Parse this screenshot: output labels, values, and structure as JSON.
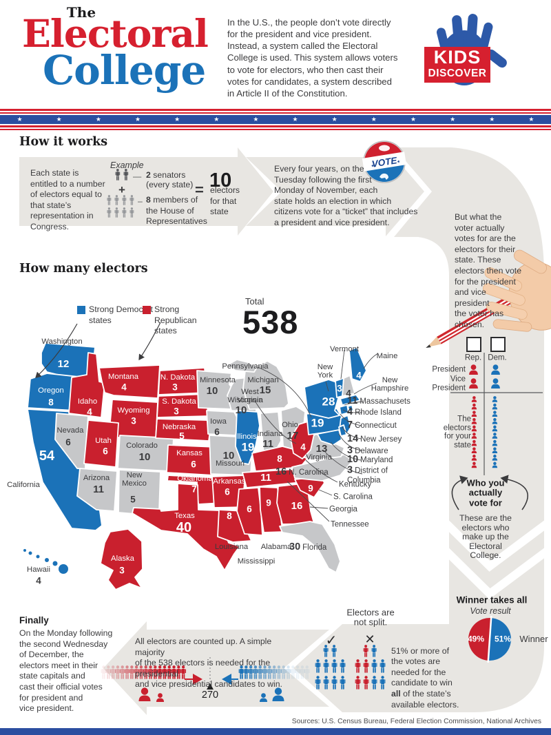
{
  "header": {
    "pretitle": "The",
    "title_word1": "Electoral",
    "title_word2": "College",
    "intro": "In the U.S., the people don’t vote directly\nfor the president and vice president.\nInstead, a system called the Electoral\nCollege is used. This system allows voters\nto vote for electors, who then cast their\nvotes for candidates, a system described\nin Article II of the Constitution.",
    "logo_line1": "KIDS",
    "logo_line2": "DISCOVER"
  },
  "divider": {
    "star": "★"
  },
  "how_it_works": {
    "heading": "How it works",
    "intro": "Each state is\nentitled to a number\nof electors equal to\nthat state’s\nrepresentation in\nCongress.",
    "example_label": "Example",
    "dash_senate": "—",
    "senators_count": "2",
    "senators_label": "senators",
    "senators_note": "(every state)",
    "plus": "+",
    "dash_house": "–",
    "house_count": "8",
    "house_label": "members of\nthe House of\nRepresentatives",
    "equals": "=",
    "result_value": "10",
    "result_label": "electors\nfor that\nstate",
    "election_note": "Every four years, on the\nTuesday following the first\nMonday of November, each\nstate holds an election in which\ncitizens vote for a “ticket” that includes\na president and vice president.",
    "vote_button": "VOTE",
    "voter_note": "But what the\nvoter actually\nvotes for are the\nelectors for their\nstate. These\nelectors then vote\nfor the president\nand vice\npresident\nthe voter has\nchosen."
  },
  "how_many": {
    "heading": "How many electors",
    "legend": [
      {
        "label": "Strong Democrat\nstates",
        "color": "#1b72b8"
      },
      {
        "label": "Strong\nRepublican\nstates",
        "color": "#c9202e"
      }
    ],
    "total_label": "Total",
    "total_value": "538"
  },
  "map": {
    "states": [
      {
        "id": "washington",
        "name": "Washington",
        "votes": 12,
        "party": "dem"
      },
      {
        "id": "oregon",
        "name": "Oregon",
        "votes": 8,
        "party": "dem"
      },
      {
        "id": "california",
        "name": "California",
        "votes": 54,
        "party": "dem"
      },
      {
        "id": "nevada",
        "name": "Nevada",
        "votes": 6,
        "party": "swing"
      },
      {
        "id": "idaho",
        "name": "Idaho",
        "votes": 4,
        "party": "rep"
      },
      {
        "id": "montana",
        "name": "Montana",
        "votes": 4,
        "party": "rep"
      },
      {
        "id": "wyoming",
        "name": "Wyoming",
        "votes": 3,
        "party": "rep"
      },
      {
        "id": "utah",
        "name": "Utah",
        "votes": 6,
        "party": "rep"
      },
      {
        "id": "colorado",
        "name": "Colorado",
        "votes": 10,
        "party": "swing"
      },
      {
        "id": "arizona",
        "name": "Arizona",
        "votes": 11,
        "party": "swing"
      },
      {
        "id": "new-mexico",
        "name": "New\nMexico",
        "votes": 5,
        "party": "swing"
      },
      {
        "id": "north-dakota",
        "name": "N. Dakota",
        "votes": 3,
        "party": "rep"
      },
      {
        "id": "south-dakota",
        "name": "S. Dakota",
        "votes": 3,
        "party": "rep"
      },
      {
        "id": "nebraska",
        "name": "Nebraska",
        "votes": 5,
        "party": "rep"
      },
      {
        "id": "kansas",
        "name": "Kansas",
        "votes": 6,
        "party": "rep"
      },
      {
        "id": "oklahoma",
        "name": "Oklahoma",
        "votes": 7,
        "party": "rep"
      },
      {
        "id": "texas",
        "name": "Texas",
        "votes": 40,
        "party": "rep"
      },
      {
        "id": "minnesota",
        "name": "Minnesota",
        "votes": 10,
        "party": "swing"
      },
      {
        "id": "iowa",
        "name": "Iowa",
        "votes": 6,
        "party": "swing"
      },
      {
        "id": "missouri",
        "name": "Missouri",
        "votes": 10,
        "party": "swing"
      },
      {
        "id": "arkansas",
        "name": "Arkansas",
        "votes": 6,
        "party": "rep"
      },
      {
        "id": "louisiana",
        "name": "Louisiana",
        "votes": 8,
        "party": "rep"
      },
      {
        "id": "wisconsin",
        "name": "Wisconsin",
        "votes": 10,
        "party": "swing"
      },
      {
        "id": "illinois",
        "name": "Illinois",
        "votes": 19,
        "party": "dem"
      },
      {
        "id": "indiana",
        "name": "Indiana",
        "votes": 11,
        "party": "swing"
      },
      {
        "id": "michigan",
        "name": "Michigan",
        "votes": 15,
        "party": "swing"
      },
      {
        "id": "ohio",
        "name": "Ohio",
        "votes": 17,
        "party": "swing"
      },
      {
        "id": "kentucky",
        "name": "Kentucky",
        "votes": 8,
        "party": "rep"
      },
      {
        "id": "tennessee",
        "name": "Tennessee",
        "votes": 11,
        "party": "rep"
      },
      {
        "id": "mississippi",
        "name": "Mississippi",
        "votes": 6,
        "party": "rep"
      },
      {
        "id": "alabama",
        "name": "Alabama",
        "votes": 9,
        "party": "rep"
      },
      {
        "id": "georgia",
        "name": "Georgia",
        "votes": 16,
        "party": "rep"
      },
      {
        "id": "south-carolina",
        "name": "S. Carolina",
        "votes": 9,
        "party": "rep"
      },
      {
        "id": "north-carolina",
        "name": "N. Carolina",
        "votes": 16,
        "party": "swing"
      },
      {
        "id": "florida",
        "name": "Florida",
        "votes": 30,
        "party": "swing"
      },
      {
        "id": "virginia",
        "name": "Virginia",
        "votes": 13,
        "party": "swing"
      },
      {
        "id": "west-virginia",
        "name": "West\nVirginia",
        "votes": 4,
        "party": "rep"
      },
      {
        "id": "pennsylvania",
        "name": "Pennsylvania",
        "votes": 19,
        "party": "dem"
      },
      {
        "id": "new-york",
        "name": "New\nYork",
        "votes": 28,
        "party": "dem"
      },
      {
        "id": "vermont",
        "name": "Vermont",
        "votes": 3,
        "party": "dem"
      },
      {
        "id": "new-hampshire",
        "name": "New\nHampshire",
        "votes": 4,
        "party": "swing"
      },
      {
        "id": "maine",
        "name": "Maine",
        "votes": 4,
        "party": "dem"
      },
      {
        "id": "massachusetts",
        "name": "Massachusets",
        "votes": 11,
        "party": "dem"
      },
      {
        "id": "rhode-island",
        "name": "Rhode Island",
        "votes": 4,
        "party": "dem"
      },
      {
        "id": "connecticut",
        "name": "Connecticut",
        "votes": 7,
        "party": "dem"
      },
      {
        "id": "new-jersey",
        "name": "New Jersey",
        "votes": 14,
        "party": "dem"
      },
      {
        "id": "delaware",
        "name": "Delaware",
        "votes": 3,
        "party": "dem"
      },
      {
        "id": "maryland",
        "name": "Maryland",
        "votes": 10,
        "party": "dem"
      },
      {
        "id": "dc",
        "name": "District of\nColumbia",
        "votes": 3,
        "party": "dem"
      },
      {
        "id": "alaska",
        "name": "Alaska",
        "votes": 3,
        "party": "rep"
      },
      {
        "id": "hawaii",
        "name": "Hawaii",
        "votes": 4,
        "party": "dem"
      }
    ]
  },
  "ballot": {
    "rep_label": "Rep.",
    "dem_label": "Dem.",
    "president_label": "President",
    "vice_president_label": "Vice\nPresident",
    "electors_label": "The\nelectors\nfor your\nstate",
    "who_label": "Who you\nactually\nvote for",
    "who_note": "These are the\nelectors who\nmake up the\nElectoral\nCollege."
  },
  "winner": {
    "heading": "Winner takes all",
    "sub": "Vote result",
    "pie": {
      "red_pct": "49%",
      "blue_pct": "51%"
    },
    "winner_label": "Winner",
    "split_note": "Electors are\nnot split.",
    "check": "✓",
    "cross": "✕",
    "rule_before": "51% or more of\nthe votes are\nneeded for the\ncandidate to win\n",
    "rule_bold": "all",
    "rule_after": " of the state’s\navailable electors."
  },
  "finally": {
    "heading": "Finally",
    "body": "On the Monday following\nthe second Wednesday\nof December, the\nelectors meet in their\nstate capitals and\ncast their official votes\nfor president and\nvice president.",
    "count_note": "All electors are counted up. A simple majority\nof the 538 electors is needed for the presidential\nand vice presidential candidates to win.",
    "threshold": "270"
  },
  "footer": {
    "sources": "Sources: U.S. Census Bureau, Federal Election Commission, National Archives"
  },
  "chart_data": {
    "type": "pie",
    "title": "Vote result",
    "labels": [
      "Republican",
      "Democrat"
    ],
    "values": [
      49,
      51
    ],
    "colors": [
      "#c9202e",
      "#1b72b8"
    ]
  },
  "colors": {
    "red": "#c9202e",
    "blue": "#1b72b8",
    "swing_gray": "#c6c7c9",
    "flow_gray": "#e8e6e2",
    "logo_blue": "#2d59a8",
    "band_blue": "#2b4ea0",
    "dark_fig": "#54565a",
    "light_fig": "#97999c",
    "text": "#3b3b3d"
  }
}
